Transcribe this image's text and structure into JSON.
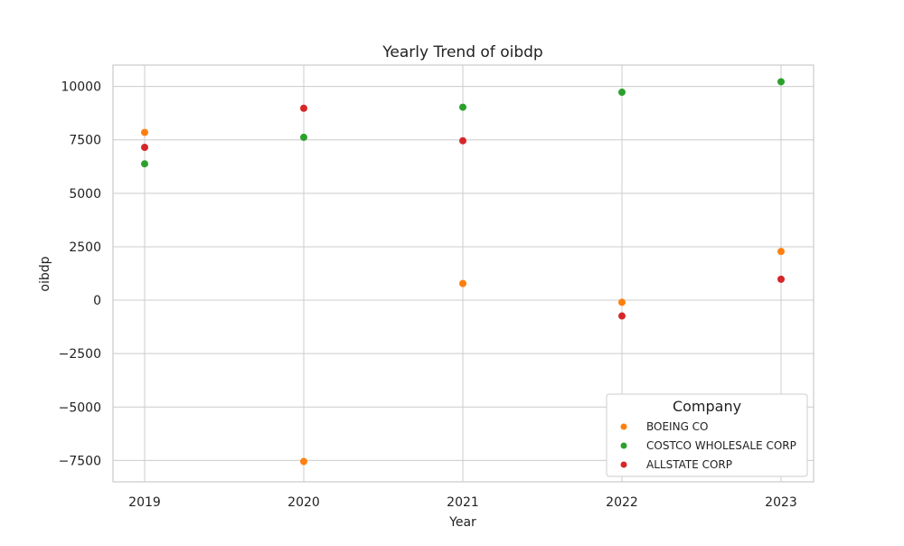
{
  "chart_data": {
    "type": "scatter",
    "title": "Yearly Trend of oibdp",
    "xlabel": "Year",
    "ylabel": "oibdp",
    "x": [
      2019,
      2020,
      2021,
      2022,
      2023
    ],
    "x_tick_labels": [
      "2019",
      "2020",
      "2021",
      "2022",
      "2023"
    ],
    "ylim": [
      -8500,
      11000
    ],
    "y_ticks": [
      -7500,
      -5000,
      -2500,
      0,
      2500,
      5000,
      7500,
      10000
    ],
    "y_tick_labels": [
      "−7500",
      "−5000",
      "−2500",
      "0",
      "2500",
      "5000",
      "7500",
      "10000"
    ],
    "grid": true,
    "legend": {
      "title": "Company",
      "position": "lower-right"
    },
    "series": [
      {
        "name": "BOEING CO",
        "color": "#ff7f0e",
        "values": [
          7850,
          -7550,
          780,
          -100,
          2280
        ]
      },
      {
        "name": "COSTCO WHOLESALE CORP",
        "color": "#2ca02c",
        "values": [
          6380,
          7620,
          9030,
          9730,
          10220
        ]
      },
      {
        "name": "ALLSTATE CORP",
        "color": "#d62728",
        "values": [
          7150,
          8980,
          7460,
          -740,
          980
        ]
      }
    ]
  }
}
